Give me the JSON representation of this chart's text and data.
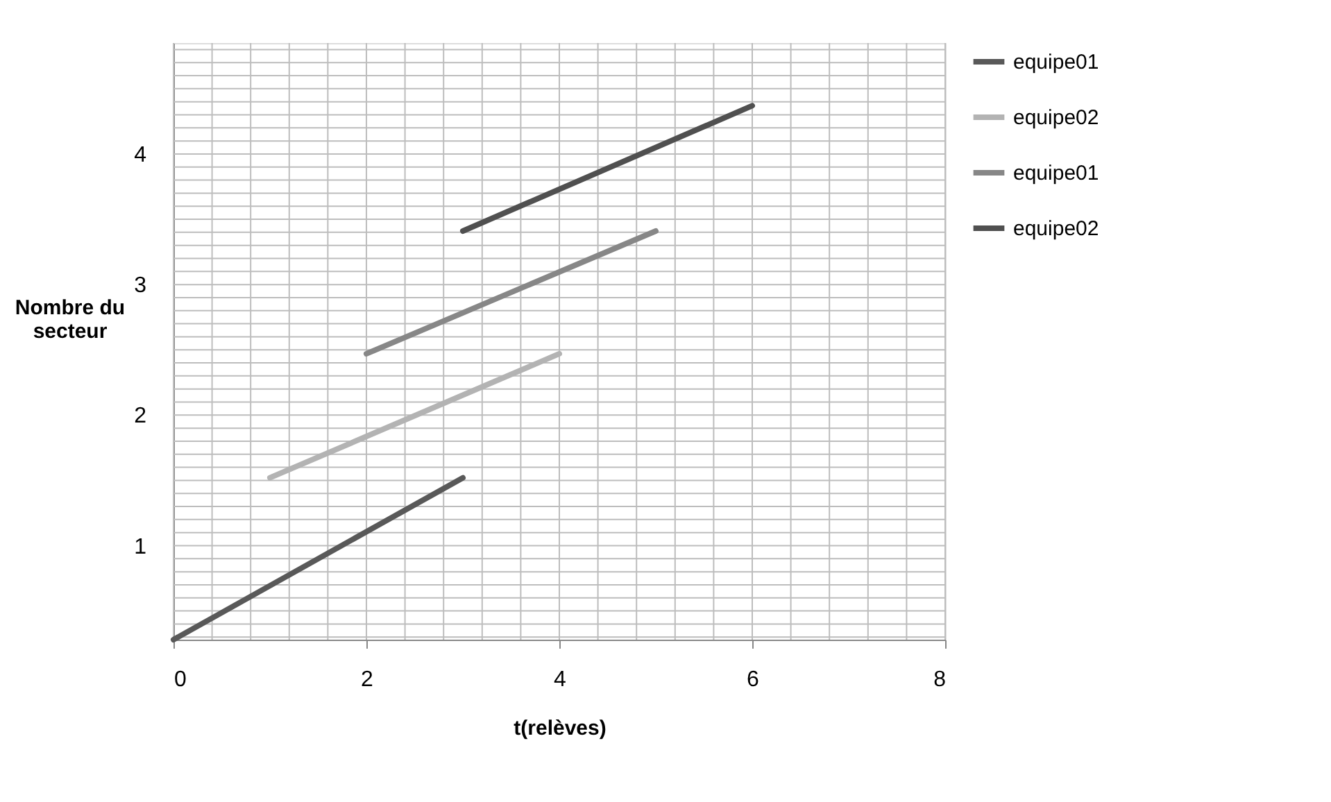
{
  "chart_data": {
    "type": "line",
    "xlabel": "t(relèves)",
    "ylabel": "Nombre du secteur",
    "xlim": [
      0,
      8
    ],
    "ylim": [
      0.28,
      4.85
    ],
    "xticks": [
      0,
      2,
      4,
      6,
      8
    ],
    "yticks": [
      1,
      2,
      3,
      4
    ],
    "grid": true,
    "legend": "right",
    "marker": "none",
    "line_style": "solid",
    "series": [
      {
        "name": "equipe01",
        "color": "#595959",
        "x": [
          0,
          3
        ],
        "values": [
          0.28,
          1.52
        ]
      },
      {
        "name": "equipe02",
        "color": "#b3b3b3",
        "x": [
          1,
          4
        ],
        "values": [
          1.52,
          2.47
        ]
      },
      {
        "name": "equipe01",
        "color": "#878787",
        "x": [
          2,
          5
        ],
        "values": [
          2.47,
          3.41
        ]
      },
      {
        "name": "equipe02",
        "color": "#505050",
        "x": [
          3,
          6
        ],
        "values": [
          3.41,
          4.37
        ]
      }
    ]
  }
}
